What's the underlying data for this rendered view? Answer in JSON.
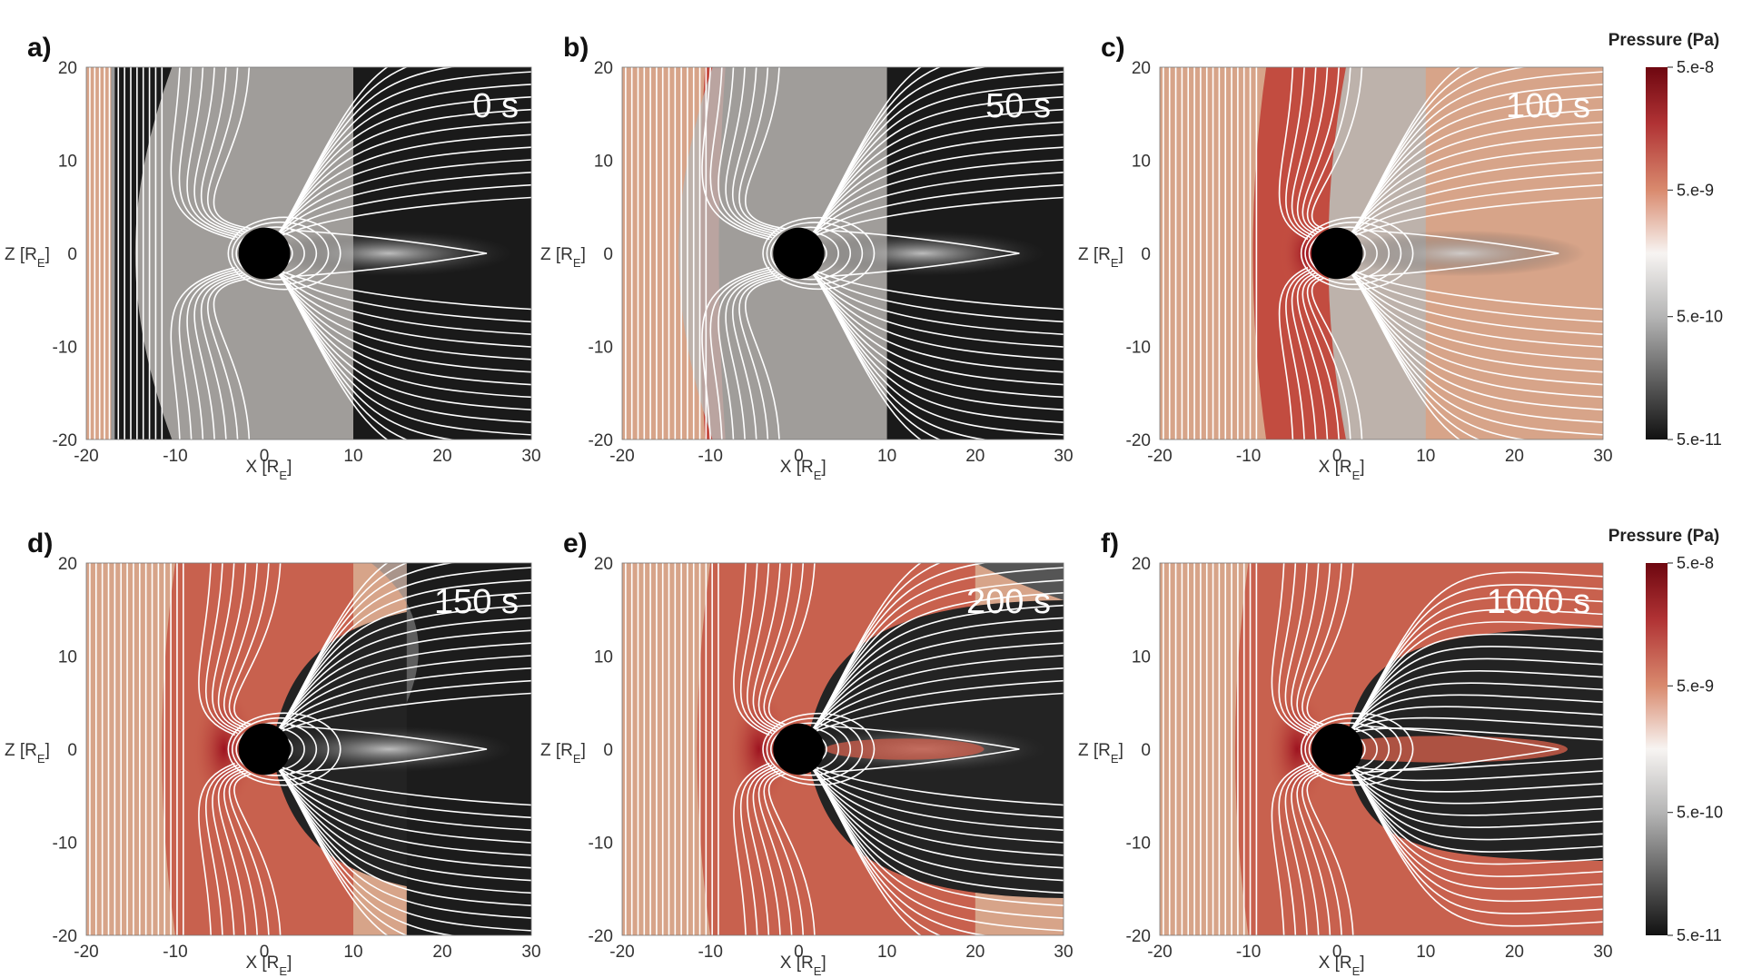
{
  "colors": {
    "solar_wind": "#d7a489",
    "compressed": "#c65a48",
    "compressed_dark": "#a8202a",
    "magnetosphere_dark": "#1a1a1a",
    "magnetosheath_gray": "#b8b5b2",
    "field_lines": "#ffffff",
    "planet": "#000000"
  },
  "colorbar": {
    "title": "Pressure (Pa)",
    "ticks": [
      "5.e-8",
      "5.e-9",
      "5.e-10",
      "5.e-11"
    ],
    "scale": "log",
    "stops": [
      {
        "frac": 0.0,
        "color": "#2a1a1a"
      },
      {
        "frac": 0.0,
        "color": "#1a1a1a"
      }
    ],
    "gradient": [
      "#7a0b14",
      "#b93b3a",
      "#d98a6e",
      "#f2d9cc",
      "#f7f7f7",
      "#c9c9c9",
      "#8c8c8c",
      "#4a4a4a",
      "#141414"
    ]
  },
  "chart_data": [
    {
      "type": "heatmap",
      "panel": "a)",
      "time": "0 s",
      "xlabel": "X [R_E]",
      "ylabel": "Z [R_E]",
      "xlim": [
        -20,
        30
      ],
      "ylim": [
        -20,
        20
      ],
      "xticks": [
        "-20",
        "-10",
        "0",
        "10",
        "20",
        "30"
      ],
      "yticks": [
        "20",
        "10",
        "0",
        "-10",
        "-20"
      ],
      "shock_x": -17,
      "bow_x": -10
    },
    {
      "type": "heatmap",
      "panel": "b)",
      "time": "50 s",
      "xlabel": "X [R_E]",
      "ylabel": "Z [R_E]",
      "xlim": [
        -20,
        30
      ],
      "ylim": [
        -20,
        20
      ],
      "xticks": [
        "-20",
        "-10",
        "0",
        "10",
        "20",
        "30"
      ],
      "yticks": [
        "20",
        "10",
        "0",
        "-10",
        "-20"
      ],
      "shock_x": -10,
      "bow_x": -9
    },
    {
      "type": "heatmap",
      "panel": "c)",
      "time": "100 s",
      "xlabel": "X [R_E]",
      "ylabel": "Z [R_E]",
      "xlim": [
        -20,
        30
      ],
      "ylim": [
        -20,
        20
      ],
      "xticks": [
        "-20",
        "-10",
        "0",
        "10",
        "20",
        "30"
      ],
      "yticks": [
        "20",
        "10",
        "0",
        "-10",
        "-20"
      ],
      "shock_x": 0,
      "bow_x": -4
    },
    {
      "type": "heatmap",
      "panel": "d)",
      "time": "150 s",
      "xlabel": "X [R_E]",
      "ylabel": "Z [R_E]",
      "xlim": [
        -20,
        30
      ],
      "ylim": [
        -20,
        20
      ],
      "xticks": [
        "-20",
        "-10",
        "0",
        "10",
        "20",
        "30"
      ],
      "yticks": [
        "20",
        "10",
        "0",
        "-10",
        "-20"
      ],
      "shock_x": 10,
      "bow_x": -5
    },
    {
      "type": "heatmap",
      "panel": "e)",
      "time": "200 s",
      "xlabel": "X [R_E]",
      "ylabel": "Z [R_E]",
      "xlim": [
        -20,
        30
      ],
      "ylim": [
        -20,
        20
      ],
      "xticks": [
        "-20",
        "-10",
        "0",
        "10",
        "20",
        "30"
      ],
      "yticks": [
        "20",
        "10",
        "0",
        "-10",
        "-20"
      ],
      "shock_x": 20,
      "bow_x": -5
    },
    {
      "type": "heatmap",
      "panel": "f)",
      "time": "1000 s",
      "xlabel": "X [R_E]",
      "ylabel": "Z [R_E]",
      "xlim": [
        -20,
        30
      ],
      "ylim": [
        -20,
        20
      ],
      "xticks": [
        "-20",
        "-10",
        "0",
        "10",
        "20",
        "30"
      ],
      "yticks": [
        "20",
        "10",
        "0",
        "-10",
        "-20"
      ],
      "shock_x": 30,
      "bow_x": -5
    }
  ]
}
